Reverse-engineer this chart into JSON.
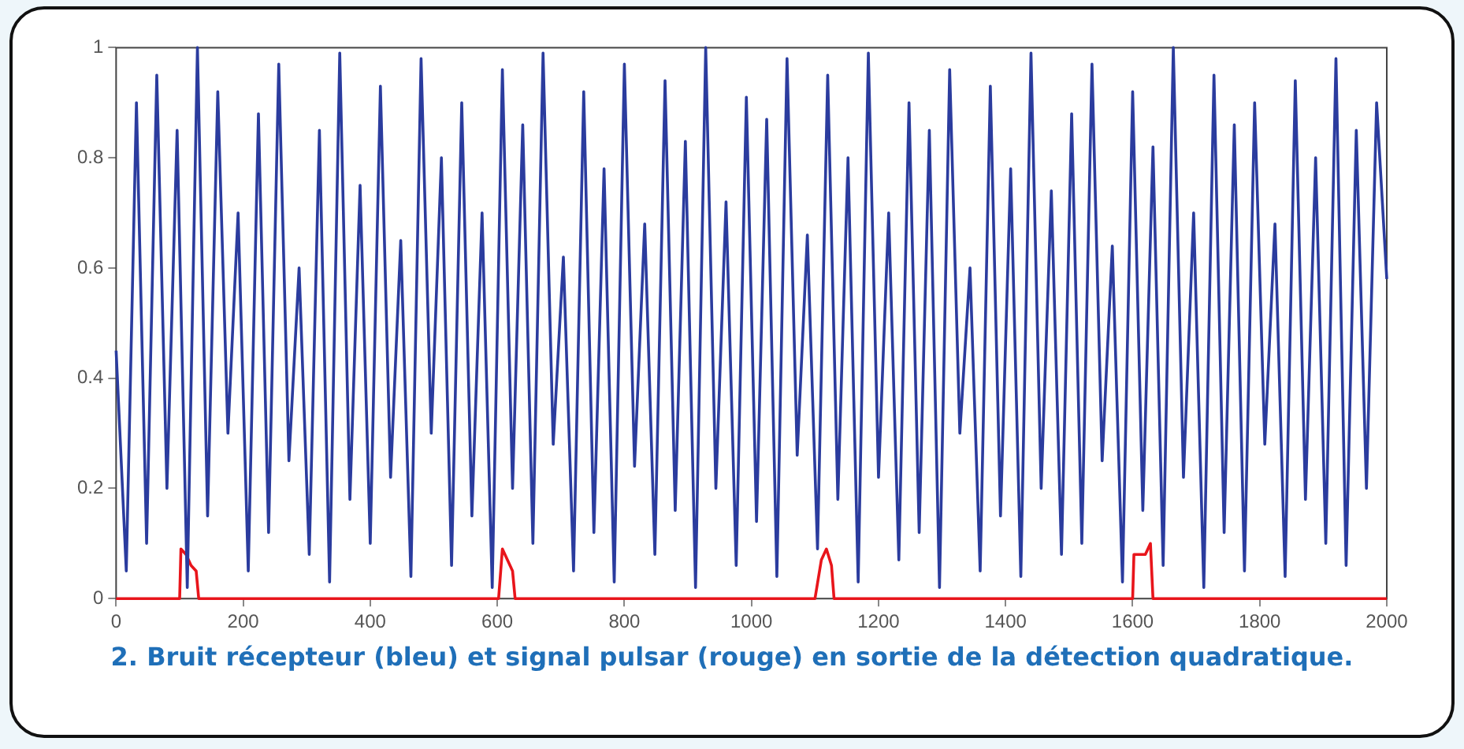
{
  "chart_data": {
    "type": "line",
    "annotations": [
      "2. Bruit récepteur (bleu) et signal pulsar (rouge) en sortie de la détection quadratique."
    ],
    "xlim": [
      0,
      2000
    ],
    "xticks": [
      0,
      200,
      400,
      600,
      800,
      1000,
      1200,
      1400,
      1600,
      1800,
      2000
    ],
    "ylim": [
      0,
      1
    ],
    "yticks": [
      0,
      0.2,
      0.4,
      0.6,
      0.8,
      1
    ],
    "grid": false,
    "legend": false,
    "marker": "none",
    "line_style": "solid",
    "series": [
      {
        "color": "#2b3c9e",
        "x": [
          0,
          16,
          32,
          48,
          64,
          80,
          96,
          112,
          128,
          144,
          160,
          176,
          192,
          208,
          224,
          240,
          256,
          272,
          288,
          304,
          320,
          336,
          352,
          368,
          384,
          400,
          416,
          432,
          448,
          464,
          480,
          496,
          512,
          528,
          544,
          560,
          576,
          592,
          608,
          624,
          640,
          656,
          672,
          688,
          704,
          720,
          736,
          752,
          768,
          784,
          800,
          816,
          832,
          848,
          864,
          880,
          896,
          912,
          928,
          944,
          960,
          976,
          992,
          1008,
          1024,
          1040,
          1056,
          1072,
          1088,
          1104,
          1120,
          1136,
          1152,
          1168,
          1184,
          1200,
          1216,
          1232,
          1248,
          1264,
          1280,
          1296,
          1312,
          1328,
          1344,
          1360,
          1376,
          1392,
          1408,
          1424,
          1440,
          1456,
          1472,
          1488,
          1504,
          1520,
          1536,
          1552,
          1568,
          1584,
          1600,
          1616,
          1632,
          1648,
          1664,
          1680,
          1696,
          1712,
          1728,
          1744,
          1760,
          1776,
          1792,
          1808,
          1824,
          1840,
          1856,
          1872,
          1888,
          1904,
          1920,
          1936,
          1952,
          1968,
          1984,
          2000
        ],
        "values": [
          0.45,
          0.05,
          0.9,
          0.1,
          0.95,
          0.2,
          0.85,
          0.02,
          1.0,
          0.15,
          0.92,
          0.3,
          0.7,
          0.05,
          0.88,
          0.12,
          0.97,
          0.25,
          0.6,
          0.08,
          0.85,
          0.03,
          0.99,
          0.18,
          0.75,
          0.1,
          0.93,
          0.22,
          0.65,
          0.04,
          0.98,
          0.3,
          0.8,
          0.06,
          0.9,
          0.15,
          0.7,
          0.02,
          0.96,
          0.2,
          0.86,
          0.1,
          0.99,
          0.28,
          0.62,
          0.05,
          0.92,
          0.12,
          0.78,
          0.03,
          0.97,
          0.24,
          0.68,
          0.08,
          0.94,
          0.16,
          0.83,
          0.02,
          1.0,
          0.2,
          0.72,
          0.06,
          0.91,
          0.14,
          0.87,
          0.04,
          0.98,
          0.26,
          0.66,
          0.09,
          0.95,
          0.18,
          0.8,
          0.03,
          0.99,
          0.22,
          0.7,
          0.07,
          0.9,
          0.12,
          0.85,
          0.02,
          0.96,
          0.3,
          0.6,
          0.05,
          0.93,
          0.15,
          0.78,
          0.04,
          0.99,
          0.2,
          0.74,
          0.08,
          0.88,
          0.1,
          0.97,
          0.25,
          0.64,
          0.03,
          0.92,
          0.16,
          0.82,
          0.06,
          1.0,
          0.22,
          0.7,
          0.02,
          0.95,
          0.12,
          0.86,
          0.05,
          0.9,
          0.28,
          0.68,
          0.04,
          0.94,
          0.18,
          0.8,
          0.1,
          0.98,
          0.06,
          0.85,
          0.2,
          0.9,
          0.58
        ]
      },
      {
        "color": "#e8151b",
        "x": [
          0,
          100,
          102,
          110,
          118,
          126,
          130,
          600,
          602,
          608,
          616,
          624,
          628,
          1100,
          1102,
          1110,
          1118,
          1126,
          1130,
          1600,
          1602,
          1610,
          1620,
          1628,
          1632,
          2000
        ],
        "values": [
          0,
          0,
          0.09,
          0.08,
          0.06,
          0.05,
          0,
          0,
          0,
          0.09,
          0.07,
          0.05,
          0,
          0,
          0,
          0.07,
          0.09,
          0.06,
          0,
          0,
          0.08,
          0.08,
          0.08,
          0.1,
          0,
          0
        ]
      }
    ]
  }
}
